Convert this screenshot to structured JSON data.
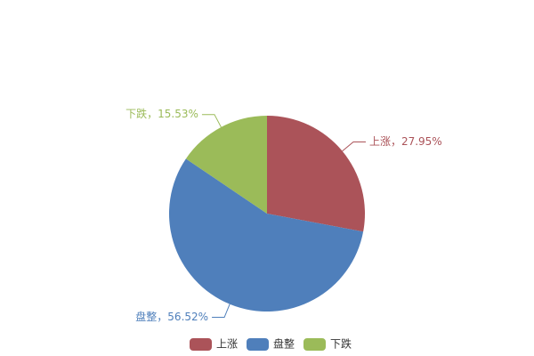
{
  "chart_data": {
    "type": "pie",
    "categories": [
      "上涨",
      "盘整",
      "下跌"
    ],
    "values": [
      27.95,
      56.52,
      15.53
    ],
    "value_labels": [
      "上涨，27.95%",
      "盘整，56.52%",
      "下跌，15.53%"
    ],
    "colors": [
      "#ab5359",
      "#4f7fbb",
      "#9bbb59"
    ]
  }
}
